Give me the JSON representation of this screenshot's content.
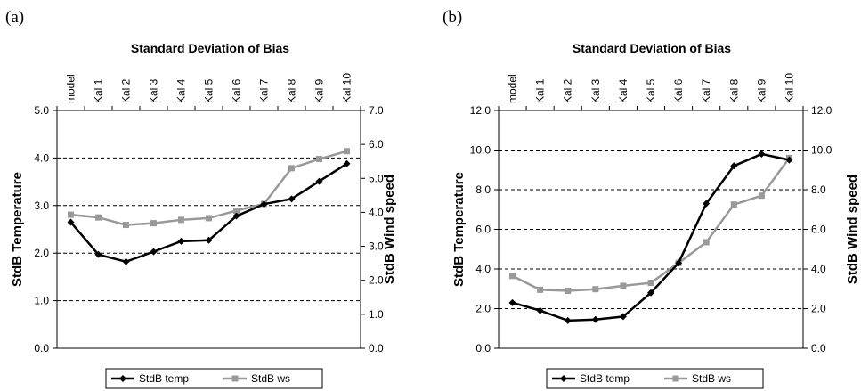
{
  "chart_data": [
    {
      "panel": "(a)",
      "type": "line",
      "title": "Standard Deviation of Bias",
      "categories": [
        "model",
        "Kal 1",
        "Kal 2",
        "Kal 3",
        "Kal 4",
        "Kal 5",
        "Kal 6",
        "Kal 7",
        "Kal 8",
        "Kal 9",
        "Kal 10"
      ],
      "ylabel": "StdB Temperature",
      "y2label": "StdB Wind speed",
      "ylim": [
        0,
        5
      ],
      "y2lim": [
        0,
        7
      ],
      "yticks": [
        "0.0",
        "1.0",
        "2.0",
        "3.0",
        "4.0",
        "5.0"
      ],
      "y2ticks": [
        "0.0",
        "1.0",
        "2.0",
        "3.0",
        "4.0",
        "5.0",
        "6.0",
        "7.0"
      ],
      "grid": "horizontal dashed",
      "series": [
        {
          "name": "StdB temp",
          "axis": "left",
          "color": "#000000",
          "marker": "diamond",
          "values": [
            2.65,
            1.97,
            1.82,
            2.03,
            2.25,
            2.27,
            2.78,
            3.03,
            3.14,
            3.51,
            3.88
          ]
        },
        {
          "name": "StdB ws",
          "axis": "right",
          "color": "#999999",
          "marker": "square",
          "values": [
            3.93,
            3.85,
            3.63,
            3.68,
            3.78,
            3.83,
            4.05,
            4.25,
            5.3,
            5.57,
            5.8
          ]
        }
      ],
      "legend": "bottom"
    },
    {
      "panel": "(b)",
      "type": "line",
      "title": "Standard Deviation of Bias",
      "categories": [
        "model",
        "Kal 1",
        "Kal 2",
        "Kal 3",
        "Kal 4",
        "Kal 5",
        "Kal 6",
        "Kal 7",
        "Kal 8",
        "Kal 9",
        "Kal 10"
      ],
      "ylabel": "StdB Temperature",
      "y2label": "StdB Wind speed",
      "ylim": [
        0,
        12
      ],
      "y2lim": [
        0,
        12
      ],
      "yticks": [
        "0.0",
        "2.0",
        "4.0",
        "6.0",
        "8.0",
        "10.0",
        "12.0"
      ],
      "y2ticks": [
        "0.0",
        "2.0",
        "4.0",
        "6.0",
        "8.0",
        "10.0",
        "12.0"
      ],
      "grid": "horizontal dashed",
      "series": [
        {
          "name": "StdB temp",
          "axis": "left",
          "color": "#000000",
          "marker": "diamond",
          "values": [
            2.3,
            1.9,
            1.4,
            1.45,
            1.6,
            2.8,
            4.3,
            7.3,
            9.2,
            9.8,
            9.5
          ]
        },
        {
          "name": "StdB ws",
          "axis": "right",
          "color": "#999999",
          "marker": "square",
          "values": [
            3.65,
            2.95,
            2.9,
            2.98,
            3.15,
            3.3,
            4.3,
            5.35,
            7.25,
            7.7,
            9.6
          ]
        }
      ],
      "legend": "bottom"
    }
  ]
}
